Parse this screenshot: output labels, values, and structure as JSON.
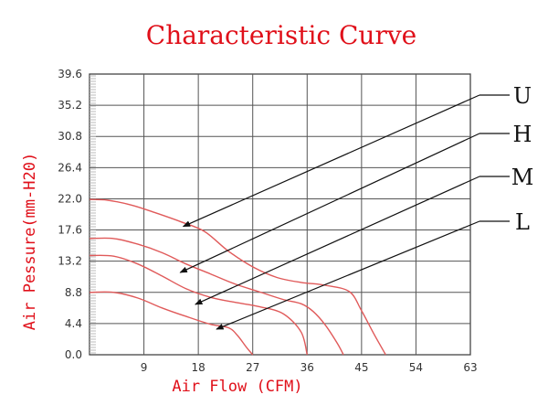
{
  "chart_data": {
    "type": "line",
    "title": "Characteristic Curve",
    "xlabel": "Air Flow (CFM)",
    "ylabel": "Air Pessure(mm-H20)",
    "xlim": [
      0,
      63
    ],
    "ylim": [
      0,
      39.6
    ],
    "x_ticks": [
      {
        "value": 9,
        "label": "9"
      },
      {
        "value": 18,
        "label": "18"
      },
      {
        "value": 27,
        "label": "27"
      },
      {
        "value": 36,
        "label": "36"
      },
      {
        "value": 45,
        "label": "45"
      },
      {
        "value": 54,
        "label": "54"
      },
      {
        "value": 63,
        "label": "63"
      }
    ],
    "y_ticks": [
      {
        "value": 0,
        "label": "0.0"
      },
      {
        "value": 4.4,
        "label": "4.4"
      },
      {
        "value": 8.8,
        "label": "8.8"
      },
      {
        "value": 13.2,
        "label": "13.2"
      },
      {
        "value": 17.6,
        "label": "17.6"
      },
      {
        "value": 22.0,
        "label": "22.0"
      },
      {
        "value": 26.4,
        "label": "26.4"
      },
      {
        "value": 30.8,
        "label": "30.8"
      },
      {
        "value": 35.2,
        "label": "35.2"
      },
      {
        "value": 39.6,
        "label": "39.6"
      }
    ],
    "grid": true,
    "line_color": "#e05a5a",
    "series": [
      {
        "name": "U",
        "x": [
          0,
          3,
          7,
          11,
          15,
          19,
          23,
          27,
          31,
          35,
          39,
          43,
          45,
          47,
          49
        ],
        "y": [
          21.9,
          21.8,
          21.1,
          20.0,
          18.8,
          17.4,
          14.6,
          12.4,
          10.9,
          10.2,
          9.8,
          8.9,
          6.2,
          3.0,
          0
        ]
      },
      {
        "name": "H",
        "x": [
          0,
          4,
          8,
          12,
          16,
          20,
          24,
          28,
          32,
          35,
          37,
          39,
          41,
          42
        ],
        "y": [
          16.4,
          16.4,
          15.6,
          14.4,
          12.8,
          11.4,
          10.0,
          8.9,
          7.8,
          7.2,
          6.1,
          4.2,
          1.6,
          0
        ]
      },
      {
        "name": "M",
        "x": [
          0,
          4,
          8,
          12,
          16,
          20,
          24,
          28,
          32,
          35,
          36
        ],
        "y": [
          14.0,
          13.9,
          12.8,
          11.1,
          9.3,
          8.1,
          7.4,
          6.8,
          5.8,
          3.2,
          0
        ]
      },
      {
        "name": "L",
        "x": [
          0,
          4,
          8,
          12,
          16,
          20,
          23,
          24.5,
          26,
          27
        ],
        "y": [
          8.8,
          8.8,
          8.0,
          6.6,
          5.4,
          4.3,
          3.8,
          2.7,
          1.0,
          0
        ]
      }
    ],
    "labels": [
      {
        "text": "U",
        "series": "U",
        "anchor_x": 15.5,
        "anchor_y": 18.1
      },
      {
        "text": "H",
        "series": "H",
        "anchor_x": 15,
        "anchor_y": 11.6
      },
      {
        "text": "M",
        "series": "M",
        "anchor_x": 17.5,
        "anchor_y": 7.1
      },
      {
        "text": "L",
        "series": "L",
        "anchor_x": 21,
        "anchor_y": 3.6
      }
    ]
  }
}
